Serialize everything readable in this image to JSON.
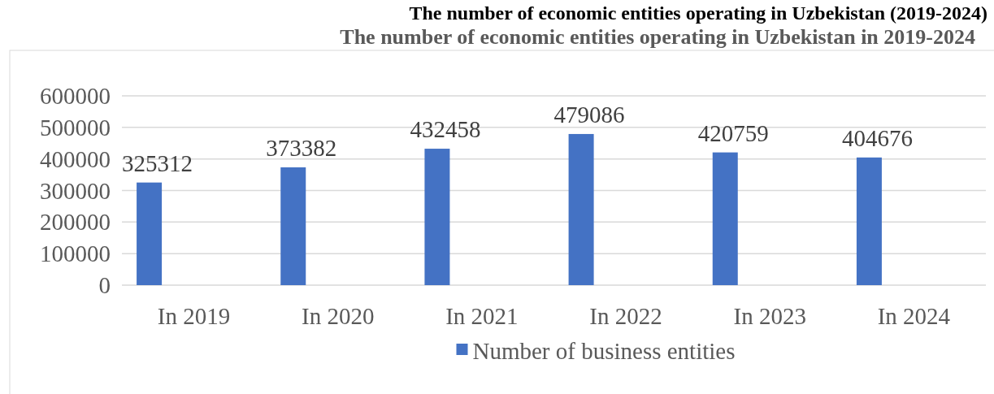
{
  "chart_data": {
    "type": "bar",
    "title": "The number of economic entities operating in Uzbekistan (2019-2024)",
    "subtitle": "The number of economic entities operating in Uzbekistan in 2019-2024",
    "categories": [
      "In 2019",
      "In 2020",
      "In 2021",
      "In 2022",
      "In 2023",
      "In 2024"
    ],
    "series": [
      {
        "name": "Number of business entities",
        "color": "#4472c4",
        "values": [
          325312,
          373382,
          432458,
          479086,
          420759,
          404676
        ]
      }
    ],
    "ylim": [
      0,
      600000
    ],
    "yticks": [
      0,
      100000,
      200000,
      300000,
      400000,
      500000,
      600000
    ],
    "grid": "y",
    "legend": "bottom",
    "data_labels": true
  }
}
